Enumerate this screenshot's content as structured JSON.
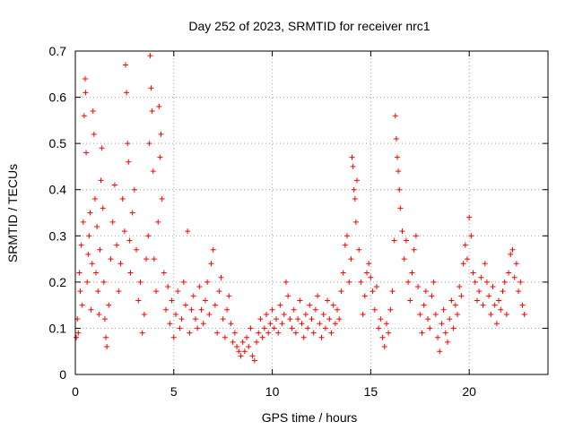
{
  "chart_data": {
    "type": "scatter",
    "title": "Day 252 of 2023, SRMTID for receiver nrc1",
    "xlabel": "GPS time / hours",
    "ylabel": "SRMTID / TECUs",
    "xlim": [
      0,
      24
    ],
    "ylim": [
      0,
      0.7
    ],
    "x_ticks": [
      0,
      5,
      10,
      15,
      20
    ],
    "y_ticks": [
      0,
      0.1,
      0.2,
      0.3,
      0.4,
      0.5,
      0.6,
      0.7
    ],
    "x_tick_labels": [
      "0",
      "5",
      "10",
      "15",
      "20"
    ],
    "y_tick_labels": [
      "0",
      "0.1",
      "0.2",
      "0.3",
      "0.4",
      "0.5",
      "0.6",
      "0.7"
    ],
    "grid": true,
    "marker": "+",
    "color": "#ff0000",
    "series": [
      {
        "name": "nrc1",
        "points": [
          [
            0.05,
            0.08
          ],
          [
            0.1,
            0.12
          ],
          [
            0.15,
            0.09
          ],
          [
            0.2,
            0.22
          ],
          [
            0.25,
            0.18
          ],
          [
            0.3,
            0.28
          ],
          [
            0.35,
            0.15
          ],
          [
            0.4,
            0.33
          ],
          [
            0.45,
            0.56
          ],
          [
            0.5,
            0.64
          ],
          [
            0.52,
            0.61
          ],
          [
            0.55,
            0.48
          ],
          [
            0.6,
            0.2
          ],
          [
            0.65,
            0.26
          ],
          [
            0.7,
            0.3
          ],
          [
            0.75,
            0.35
          ],
          [
            0.8,
            0.14
          ],
          [
            0.85,
            0.24
          ],
          [
            0.9,
            0.57
          ],
          [
            0.95,
            0.52
          ],
          [
            1.0,
            0.38
          ],
          [
            1.05,
            0.22
          ],
          [
            1.1,
            0.32
          ],
          [
            1.15,
            0.18
          ],
          [
            1.2,
            0.13
          ],
          [
            1.25,
            0.27
          ],
          [
            1.3,
            0.42
          ],
          [
            1.35,
            0.49
          ],
          [
            1.4,
            0.36
          ],
          [
            1.45,
            0.2
          ],
          [
            1.5,
            0.12
          ],
          [
            1.55,
            0.08
          ],
          [
            1.6,
            0.06
          ],
          [
            1.7,
            0.15
          ],
          [
            1.8,
            0.25
          ],
          [
            1.9,
            0.33
          ],
          [
            2.0,
            0.41
          ],
          [
            2.1,
            0.28
          ],
          [
            2.2,
            0.18
          ],
          [
            2.3,
            0.24
          ],
          [
            2.4,
            0.38
          ],
          [
            2.5,
            0.31
          ],
          [
            2.55,
            0.67
          ],
          [
            2.6,
            0.61
          ],
          [
            2.65,
            0.5
          ],
          [
            2.7,
            0.46
          ],
          [
            2.75,
            0.29
          ],
          [
            2.8,
            0.22
          ],
          [
            2.9,
            0.35
          ],
          [
            3.0,
            0.4
          ],
          [
            3.1,
            0.27
          ],
          [
            3.2,
            0.16
          ],
          [
            3.3,
            0.2
          ],
          [
            3.4,
            0.09
          ],
          [
            3.5,
            0.13
          ],
          [
            3.6,
            0.25
          ],
          [
            3.7,
            0.3
          ],
          [
            3.75,
            0.5
          ],
          [
            3.8,
            0.69
          ],
          [
            3.85,
            0.62
          ],
          [
            3.9,
            0.57
          ],
          [
            3.95,
            0.44
          ],
          [
            4.0,
            0.25
          ],
          [
            4.1,
            0.18
          ],
          [
            4.2,
            0.33
          ],
          [
            4.25,
            0.58
          ],
          [
            4.3,
            0.47
          ],
          [
            4.35,
            0.52
          ],
          [
            4.4,
            0.38
          ],
          [
            4.5,
            0.22
          ],
          [
            4.6,
            0.14
          ],
          [
            4.7,
            0.19
          ],
          [
            4.8,
            0.11
          ],
          [
            4.9,
            0.16
          ],
          [
            5.0,
            0.08
          ],
          [
            5.1,
            0.13
          ],
          [
            5.2,
            0.18
          ],
          [
            5.3,
            0.1
          ],
          [
            5.4,
            0.12
          ],
          [
            5.5,
            0.2
          ],
          [
            5.6,
            0.15
          ],
          [
            5.7,
            0.31
          ],
          [
            5.8,
            0.09
          ],
          [
            5.9,
            0.14
          ],
          [
            6.0,
            0.17
          ],
          [
            6.1,
            0.12
          ],
          [
            6.2,
            0.1
          ],
          [
            6.3,
            0.19
          ],
          [
            6.4,
            0.14
          ],
          [
            6.5,
            0.11
          ],
          [
            6.6,
            0.16
          ],
          [
            6.7,
            0.2
          ],
          [
            6.8,
            0.13
          ],
          [
            6.9,
            0.24
          ],
          [
            7.0,
            0.27
          ],
          [
            7.1,
            0.15
          ],
          [
            7.2,
            0.09
          ],
          [
            7.3,
            0.18
          ],
          [
            7.4,
            0.21
          ],
          [
            7.5,
            0.12
          ],
          [
            7.6,
            0.08
          ],
          [
            7.7,
            0.14
          ],
          [
            7.8,
            0.17
          ],
          [
            7.9,
            0.11
          ],
          [
            8.0,
            0.07
          ],
          [
            8.1,
            0.09
          ],
          [
            8.2,
            0.06
          ],
          [
            8.3,
            0.05
          ],
          [
            8.4,
            0.04
          ],
          [
            8.5,
            0.07
          ],
          [
            8.6,
            0.05
          ],
          [
            8.7,
            0.08
          ],
          [
            8.8,
            0.06
          ],
          [
            8.9,
            0.1
          ],
          [
            9.0,
            0.04
          ],
          [
            9.1,
            0.03
          ],
          [
            9.2,
            0.07
          ],
          [
            9.3,
            0.09
          ],
          [
            9.4,
            0.12
          ],
          [
            9.5,
            0.08
          ],
          [
            9.6,
            0.1
          ],
          [
            9.7,
            0.13
          ],
          [
            9.8,
            0.09
          ],
          [
            9.9,
            0.11
          ],
          [
            10.0,
            0.14
          ],
          [
            10.1,
            0.1
          ],
          [
            10.2,
            0.12
          ],
          [
            10.3,
            0.09
          ],
          [
            10.4,
            0.15
          ],
          [
            10.5,
            0.11
          ],
          [
            10.6,
            0.13
          ],
          [
            10.7,
            0.2
          ],
          [
            10.8,
            0.17
          ],
          [
            10.9,
            0.12
          ],
          [
            11.0,
            0.1
          ],
          [
            11.1,
            0.14
          ],
          [
            11.2,
            0.09
          ],
          [
            11.3,
            0.12
          ],
          [
            11.4,
            0.16
          ],
          [
            11.5,
            0.11
          ],
          [
            11.6,
            0.08
          ],
          [
            11.7,
            0.13
          ],
          [
            11.8,
            0.1
          ],
          [
            11.9,
            0.15
          ],
          [
            12.0,
            0.12
          ],
          [
            12.1,
            0.09
          ],
          [
            12.2,
            0.14
          ],
          [
            12.3,
            0.17
          ],
          [
            12.4,
            0.11
          ],
          [
            12.5,
            0.08
          ],
          [
            12.6,
            0.13
          ],
          [
            12.7,
            0.1
          ],
          [
            12.8,
            0.16
          ],
          [
            12.9,
            0.12
          ],
          [
            13.0,
            0.09
          ],
          [
            13.1,
            0.15
          ],
          [
            13.2,
            0.11
          ],
          [
            13.3,
            0.14
          ],
          [
            13.4,
            0.12
          ],
          [
            13.5,
            0.18
          ],
          [
            13.6,
            0.22
          ],
          [
            13.7,
            0.28
          ],
          [
            13.8,
            0.3
          ],
          [
            13.9,
            0.2
          ],
          [
            14.0,
            0.25
          ],
          [
            14.05,
            0.47
          ],
          [
            14.1,
            0.45
          ],
          [
            14.15,
            0.4
          ],
          [
            14.2,
            0.38
          ],
          [
            14.25,
            0.33
          ],
          [
            14.3,
            0.42
          ],
          [
            14.4,
            0.27
          ],
          [
            14.5,
            0.2
          ],
          [
            14.6,
            0.13
          ],
          [
            14.7,
            0.17
          ],
          [
            14.8,
            0.22
          ],
          [
            14.9,
            0.24
          ],
          [
            15.0,
            0.21
          ],
          [
            15.1,
            0.18
          ],
          [
            15.2,
            0.14
          ],
          [
            15.3,
            0.19
          ],
          [
            15.4,
            0.1
          ],
          [
            15.5,
            0.12
          ],
          [
            15.6,
            0.08
          ],
          [
            15.7,
            0.06
          ],
          [
            15.8,
            0.11
          ],
          [
            15.9,
            0.09
          ],
          [
            16.0,
            0.14
          ],
          [
            16.1,
            0.18
          ],
          [
            16.2,
            0.29
          ],
          [
            16.25,
            0.56
          ],
          [
            16.3,
            0.51
          ],
          [
            16.35,
            0.47
          ],
          [
            16.4,
            0.44
          ],
          [
            16.45,
            0.4
          ],
          [
            16.5,
            0.36
          ],
          [
            16.6,
            0.31
          ],
          [
            16.7,
            0.25
          ],
          [
            16.8,
            0.29
          ],
          [
            16.9,
            0.2
          ],
          [
            17.0,
            0.16
          ],
          [
            17.1,
            0.22
          ],
          [
            17.2,
            0.27
          ],
          [
            17.3,
            0.3
          ],
          [
            17.4,
            0.19
          ],
          [
            17.5,
            0.13
          ],
          [
            17.6,
            0.09
          ],
          [
            17.7,
            0.15
          ],
          [
            17.8,
            0.18
          ],
          [
            17.9,
            0.12
          ],
          [
            18.0,
            0.1
          ],
          [
            18.1,
            0.17
          ],
          [
            18.2,
            0.2
          ],
          [
            18.3,
            0.13
          ],
          [
            18.4,
            0.08
          ],
          [
            18.5,
            0.05
          ],
          [
            18.6,
            0.11
          ],
          [
            18.7,
            0.14
          ],
          [
            18.8,
            0.09
          ],
          [
            18.9,
            0.07
          ],
          [
            19.0,
            0.12
          ],
          [
            19.1,
            0.16
          ],
          [
            19.2,
            0.1
          ],
          [
            19.3,
            0.15
          ],
          [
            19.4,
            0.13
          ],
          [
            19.5,
            0.19
          ],
          [
            19.6,
            0.17
          ],
          [
            19.7,
            0.24
          ],
          [
            19.8,
            0.28
          ],
          [
            19.9,
            0.25
          ],
          [
            20.0,
            0.34
          ],
          [
            20.1,
            0.3
          ],
          [
            20.2,
            0.22
          ],
          [
            20.3,
            0.2
          ],
          [
            20.4,
            0.16
          ],
          [
            20.5,
            0.18
          ],
          [
            20.6,
            0.21
          ],
          [
            20.7,
            0.15
          ],
          [
            20.8,
            0.24
          ],
          [
            20.9,
            0.2
          ],
          [
            21.0,
            0.17
          ],
          [
            21.1,
            0.13
          ],
          [
            21.2,
            0.19
          ],
          [
            21.3,
            0.15
          ],
          [
            21.4,
            0.11
          ],
          [
            21.5,
            0.16
          ],
          [
            21.6,
            0.14
          ],
          [
            21.7,
            0.18
          ],
          [
            21.8,
            0.2
          ],
          [
            21.9,
            0.13
          ],
          [
            22.0,
            0.22
          ],
          [
            22.1,
            0.26
          ],
          [
            22.2,
            0.27
          ],
          [
            22.3,
            0.21
          ],
          [
            22.4,
            0.24
          ],
          [
            22.5,
            0.18
          ],
          [
            22.6,
            0.2
          ],
          [
            22.7,
            0.15
          ],
          [
            22.8,
            0.13
          ]
        ]
      }
    ]
  }
}
